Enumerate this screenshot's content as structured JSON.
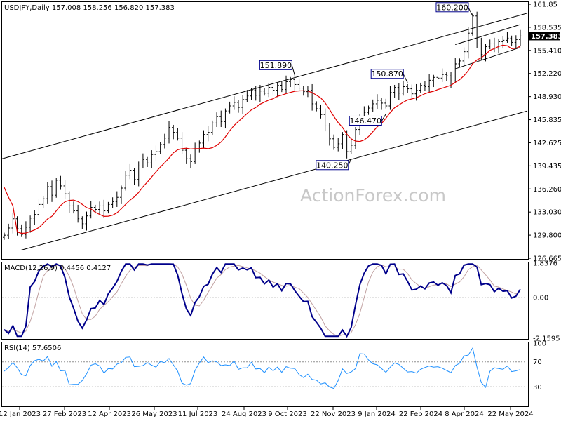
{
  "chart_data": {
    "type": "candlestick",
    "symbol_line": "USDJPY,Daily  157.008 158.256 156.820 157.383",
    "watermark": "ActionForex.com",
    "current_price": "157.383",
    "price_axis": [
      "161.85",
      "158.535",
      "155.410",
      "152.220",
      "148.930",
      "145.835",
      "142.625",
      "139.435",
      "136.260",
      "133.030",
      "129.800",
      "126.665"
    ],
    "price_range": [
      126.665,
      161.85
    ],
    "date_labels": [
      "12 Jan 2023",
      "27 Feb 2023",
      "12 Apr 2023",
      "26 May 2023",
      "11 Jul 2023",
      "24 Aug 2023",
      "9 Oct 2023",
      "22 Nov 2023",
      "9 Jan 2024",
      "22 Feb 2024",
      "8 Apr 2024",
      "22 May 2024"
    ],
    "annotations": [
      {
        "label": "160.200",
        "value": 160.2
      },
      {
        "label": "151.890",
        "value": 151.89
      },
      {
        "label": "150.870",
        "value": 150.87
      },
      {
        "label": "146.470",
        "value": 146.47
      },
      {
        "label": "140.250",
        "value": 140.25
      }
    ],
    "close_series": [
      129.5,
      130.5,
      131.8,
      130.4,
      129.6,
      130.6,
      131.9,
      132.4,
      133.8,
      134.6,
      136.3,
      135.1,
      137.2,
      136.4,
      135.3,
      133.6,
      132.9,
      131.8,
      131.1,
      132.2,
      133.4,
      133.1,
      133.6,
      132.9,
      133.8,
      134.2,
      134.8,
      136.1,
      137.9,
      138.6,
      137.3,
      139.2,
      140.1,
      139.6,
      140.8,
      141.2,
      142.2,
      143.1,
      144.6,
      143.9,
      143.1,
      141.4,
      140.2,
      139.8,
      141.6,
      142.4,
      143.6,
      143.9,
      145.2,
      146.1,
      145.4,
      146.9,
      147.6,
      148.1,
      147.4,
      148.5,
      149.0,
      149.8,
      149.1,
      149.7,
      149.4,
      150.2,
      149.8,
      150.5,
      149.9,
      151.0,
      151.3,
      150.6,
      150.1,
      149.6,
      149.8,
      147.9,
      147.2,
      146.4,
      144.8,
      143.0,
      141.8,
      142.3,
      143.6,
      141.2,
      142.1,
      144.3,
      145.9,
      146.7,
      147.3,
      147.9,
      148.4,
      148.0,
      147.6,
      149.5,
      150.2,
      149.4,
      150.3,
      150.0,
      149.3,
      149.8,
      150.5,
      150.3,
      151.2,
      151.6,
      151.5,
      152.0,
      151.8,
      151.1,
      153.5,
      153.9,
      155.2,
      157.8,
      160.2,
      156.3,
      154.8,
      155.9,
      156.3,
      155.7,
      156.6,
      156.8,
      157.1,
      156.5,
      156.9,
      157.383
    ],
    "macd": {
      "label": "MACD(12,26,9) 0.4456 0.4127",
      "axis": [
        "1.8376",
        "0.00",
        "-2.1595"
      ],
      "range": [
        -2.1595,
        1.8376
      ],
      "value": 0.4456,
      "signal": 0.4127
    },
    "rsi": {
      "label": "RSI(14) 57.6506",
      "axis": [
        "100",
        "70",
        "30",
        "0"
      ],
      "range": [
        0,
        100
      ],
      "value": 57.6506,
      "levels": [
        70,
        30
      ]
    },
    "colors": {
      "candles": "#000000",
      "ma": "#e00000",
      "channel": "#000000",
      "macd": "#00008b",
      "signal": "#c0a0a0",
      "rsi": "#1e90ff",
      "callout": "#00008b"
    }
  }
}
